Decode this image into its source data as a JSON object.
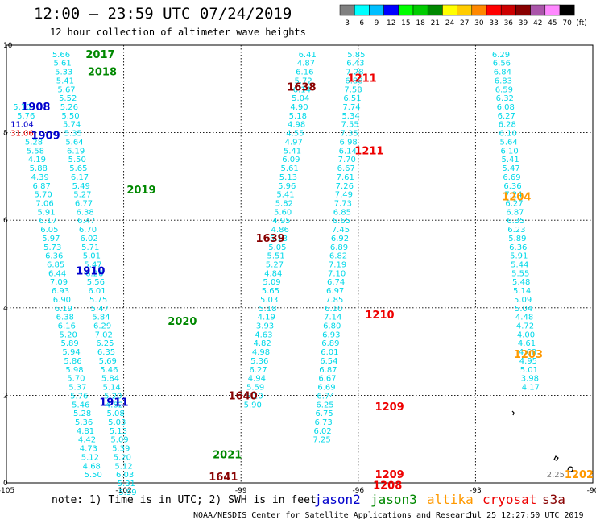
{
  "header": {
    "title": "12:00 — 23:59 UTC 07/24/2019",
    "subtitle": "12 hour collection of altimeter wave heights"
  },
  "colorbar": {
    "unit": "(ft)",
    "bins": [
      {
        "label": "3",
        "color": "#808080"
      },
      {
        "label": "6",
        "color": "#00ffff"
      },
      {
        "label": "9",
        "color": "#00bfff"
      },
      {
        "label": "12",
        "color": "#0000ff"
      },
      {
        "label": "15",
        "color": "#00ff00"
      },
      {
        "label": "18",
        "color": "#00cc00"
      },
      {
        "label": "21",
        "color": "#008800"
      },
      {
        "label": "24",
        "color": "#ffff00"
      },
      {
        "label": "27",
        "color": "#ffcc00"
      },
      {
        "label": "30",
        "color": "#ff8800"
      },
      {
        "label": "33",
        "color": "#ff0000"
      },
      {
        "label": "36",
        "color": "#cc0000"
      },
      {
        "label": "39",
        "color": "#880000"
      },
      {
        "label": "42",
        "color": "#aa55aa"
      },
      {
        "label": "45",
        "color": "#ff88ff"
      },
      {
        "label": "70",
        "color": "#000000"
      }
    ]
  },
  "axes": {
    "lon_ticks": [
      {
        "lon": -105,
        "label": "-105"
      },
      {
        "lon": -102,
        "label": "-102"
      },
      {
        "lon": -99,
        "label": "-99"
      },
      {
        "lon": -96,
        "label": "-96"
      },
      {
        "lon": -93,
        "label": "-93"
      },
      {
        "lon": -90,
        "label": "-90"
      }
    ],
    "lat_ticks": [
      {
        "lat": 0,
        "label": "0"
      },
      {
        "lat": 2,
        "label": "2"
      },
      {
        "lat": 4,
        "label": "4"
      },
      {
        "lat": 6,
        "label": "6"
      },
      {
        "lat": 8,
        "label": "8"
      },
      {
        "lat": 10,
        "label": "10"
      }
    ],
    "lon_range": [
      -105,
      -90
    ],
    "lat_range": [
      0,
      10
    ]
  },
  "colors": {
    "cyan": "#00d8e8",
    "blue": "#0000cc",
    "green": "#008800",
    "dkred": "#880000",
    "red": "#ee0000",
    "orange": "#ff9900",
    "gray": "#777777",
    "grid": "#000000"
  },
  "passes": [
    {
      "id": "A",
      "color": "cyan",
      "lon0": -103.6,
      "lat0": 9.8,
      "dlon": 0.034,
      "dlat": -0.2,
      "values": [
        "5.66",
        "5.61",
        "5.33",
        "5.41",
        "5.67",
        "5.52",
        "5.26",
        "5.50",
        "5.74",
        "5.35",
        "5.64",
        "6.19",
        "5.50",
        "5.65",
        "6.17",
        "5.49",
        "5.27",
        "6.77",
        "6.38",
        "6.47",
        "6.70",
        "6.02",
        "5.71",
        "5.01",
        "5.47",
        "6.26",
        "5.56",
        "6.01",
        "5.75",
        "5.47",
        "5.84",
        "6.29",
        "7.02",
        "6.25",
        "6.35",
        "5.69",
        "5.46",
        "5.84",
        "5.14",
        "5.20",
        "4.82",
        "5.08",
        "5.03",
        "5.13",
        "5.09",
        "5.39",
        "5.20",
        "5.12",
        "6.03",
        "5.31",
        "5.99"
      ]
    },
    {
      "id": "B",
      "color": "cyan",
      "lon0": -104.3,
      "lat0": 7.8,
      "dlon": 0.04,
      "dlat": -0.2,
      "values": [
        "5.28",
        "5.58",
        "4.19",
        "5.88",
        "4.39",
        "6.87",
        "5.70",
        "7.06",
        "5.91",
        "6.17",
        "6.05",
        "5.97",
        "5.73",
        "6.36",
        "6.85",
        "6.44",
        "7.09",
        "6.93",
        "6.90",
        "6.19",
        "6.38",
        "6.16",
        "5.20",
        "5.89",
        "5.94",
        "5.86",
        "5.98",
        "5.70",
        "5.37",
        "5.76",
        "5.46",
        "5.28",
        "5.36",
        "4.81",
        "4.42",
        "4.73",
        "5.12",
        "4.68",
        "5.50"
      ]
    },
    {
      "id": "C",
      "color": "cyan",
      "lon0": -97.3,
      "lat0": 9.8,
      "dlon": -0.035,
      "dlat": -0.2,
      "values": [
        "6.41",
        "4.87",
        "6.16",
        "5.72",
        "6.14",
        "5.04",
        "4.90",
        "5.18",
        "4.98",
        "4.55",
        "4.97",
        "5.41",
        "6.09",
        "5.61",
        "5.13",
        "5.96",
        "5.41",
        "5.82",
        "5.60",
        "4.95",
        "4.86",
        "5.13",
        "5.05",
        "5.51",
        "5.27",
        "4.84",
        "5.09",
        "5.65",
        "5.03",
        "5.18",
        "4.19",
        "3.93",
        "4.63",
        "4.82",
        "4.98",
        "5.36",
        "6.27",
        "4.94",
        "5.59",
        "5.20",
        "5.90"
      ]
    },
    {
      "id": "D",
      "color": "cyan",
      "lon0": -96.05,
      "lat0": 9.8,
      "dlon": -0.02,
      "dlat": -0.2,
      "values": [
        "5.85",
        "6.43",
        "7.28",
        "6.88",
        "7.58",
        "6.51",
        "7.74",
        "5.34",
        "7.55",
        "7.35",
        "6.98",
        "6.14",
        "7.70",
        "6.67",
        "7.61",
        "7.26",
        "7.49",
        "7.73",
        "6.85",
        "6.65",
        "7.45",
        "6.92",
        "6.89",
        "6.82",
        "7.19",
        "7.10",
        "6.74",
        "6.97",
        "7.85",
        "6.10",
        "7.14",
        "6.80",
        "6.93",
        "6.89",
        "6.01",
        "6.54",
        "6.87",
        "6.67",
        "6.69",
        "6.74",
        "6.25",
        "6.75",
        "6.73",
        "6.02",
        "7.25"
      ]
    },
    {
      "id": "E",
      "color": "cyan",
      "lon0": -92.35,
      "lat0": 9.8,
      "dlon": 0.02,
      "dlat": -0.2,
      "values": [
        "6.29",
        "6.56",
        "6.84",
        "6.83",
        "6.59",
        "6.32",
        "6.08",
        "6.27",
        "6.28",
        "6.10",
        "5.64",
        "6.10",
        "5.41",
        "5.47",
        "6.69",
        "6.36",
        "7.24",
        "6.27",
        "6.87",
        "6.35",
        "6.23",
        "5.89",
        "6.36",
        "5.91",
        "5.44",
        "5.55",
        "5.48",
        "5.14",
        "5.09",
        "5.04",
        "4.48",
        "4.72",
        "4.00",
        "4.61",
        "4.68",
        "4.95",
        "5.01",
        "3.98",
        "4.17"
      ]
    }
  ],
  "extra_values": [
    {
      "text": "5.10",
      "color": "cyan",
      "lon": -104.6,
      "lat": 8.6
    },
    {
      "text": "5.76",
      "color": "cyan",
      "lon": -104.5,
      "lat": 8.4
    },
    {
      "text": "11.04",
      "color": "blue",
      "lon": -104.6,
      "lat": 8.2
    },
    {
      "text": "31.06",
      "color": "red",
      "lon": -104.6,
      "lat": 8.0
    },
    {
      "text": "2.25",
      "color": "gray",
      "lon": -90.95,
      "lat": 0.2
    }
  ],
  "time_labels": [
    {
      "text": "2017",
      "color": "green",
      "lon": -102.6,
      "lat": 9.8
    },
    {
      "text": "2018",
      "color": "green",
      "lon": -102.55,
      "lat": 9.4
    },
    {
      "text": "1908",
      "color": "blue",
      "lon": -104.25,
      "lat": 8.6
    },
    {
      "text": "1909",
      "color": "blue",
      "lon": -104.0,
      "lat": 7.95
    },
    {
      "text": "2019",
      "color": "green",
      "lon": -101.55,
      "lat": 6.7
    },
    {
      "text": "1910",
      "color": "blue",
      "lon": -102.85,
      "lat": 4.85
    },
    {
      "text": "2020",
      "color": "green",
      "lon": -100.5,
      "lat": 3.7
    },
    {
      "text": "1911",
      "color": "blue",
      "lon": -102.25,
      "lat": 1.85
    },
    {
      "text": "2021",
      "color": "green",
      "lon": -99.35,
      "lat": 0.65
    },
    {
      "text": "1641",
      "color": "dkred",
      "lon": -99.45,
      "lat": 0.15
    },
    {
      "text": "1640",
      "color": "dkred",
      "lon": -98.95,
      "lat": 2.0
    },
    {
      "text": "1639",
      "color": "dkred",
      "lon": -98.25,
      "lat": 5.6
    },
    {
      "text": "1638",
      "color": "dkred",
      "lon": -97.45,
      "lat": 9.05
    },
    {
      "text": "1211",
      "color": "red",
      "lon": -95.9,
      "lat": 9.25
    },
    {
      "text": "1211",
      "color": "red",
      "lon": -95.72,
      "lat": 7.6
    },
    {
      "text": "1210",
      "color": "red",
      "lon": -95.45,
      "lat": 3.85
    },
    {
      "text": "1209",
      "color": "red",
      "lon": -95.2,
      "lat": 1.75
    },
    {
      "text": "1209",
      "color": "red",
      "lon": -95.2,
      "lat": 0.2
    },
    {
      "text": "1208",
      "color": "red",
      "lon": -95.25,
      "lat": -0.05
    },
    {
      "text": "1204",
      "color": "orange",
      "lon": -91.95,
      "lat": 6.55
    },
    {
      "text": "1203",
      "color": "orange",
      "lon": -91.65,
      "lat": 2.95
    },
    {
      "text": "1202",
      "color": "orange",
      "lon": -90.35,
      "lat": 0.2
    }
  ],
  "note": "note: 1) Time is in UTC; 2) SWH is in feet",
  "legend": [
    {
      "name": "jason2",
      "color": "blue",
      "left": 390
    },
    {
      "name": "jason3",
      "color": "green",
      "left": 460
    },
    {
      "name": "altika",
      "color": "orange",
      "left": 530
    },
    {
      "name": "cryosat",
      "color": "red",
      "left": 599
    },
    {
      "name": "s3a",
      "color": "dkred",
      "left": 673
    }
  ],
  "credit": "NOAA/NESDIS Center for Satellite Applications and Research",
  "timestamp": "Jul 25 12:27:50 UTC 2019"
}
